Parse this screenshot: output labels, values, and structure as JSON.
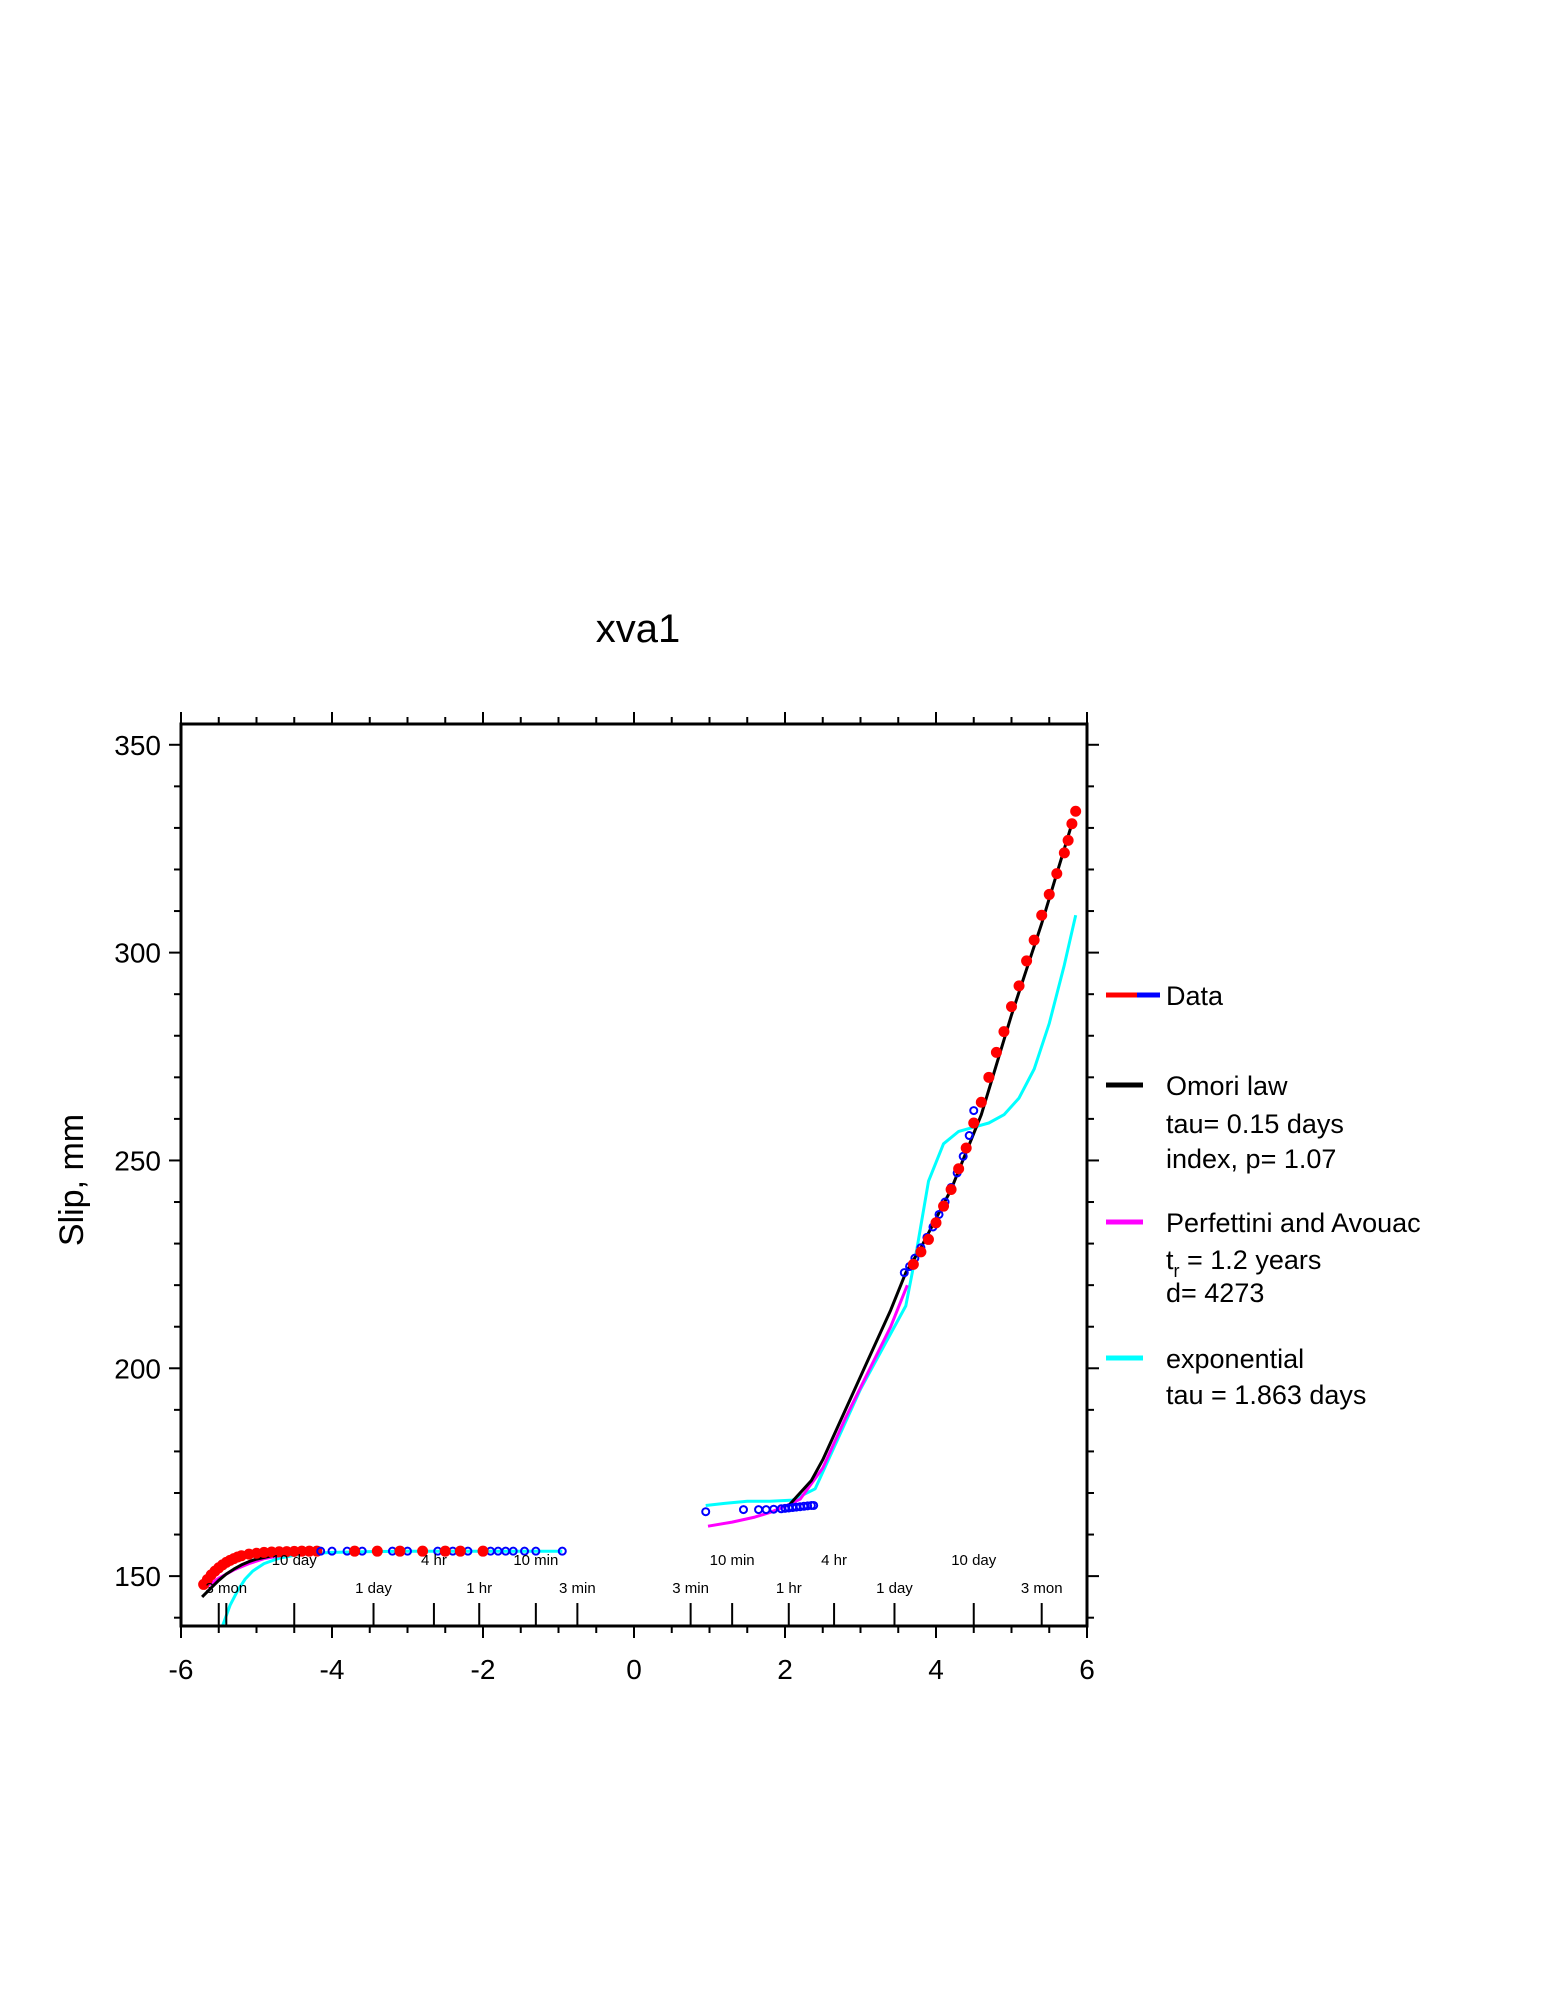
{
  "chart_data": {
    "type": "scatter",
    "title": "xva1",
    "xlabel": "",
    "ylabel": "Slip, mm",
    "xlim": [
      -6,
      6
    ],
    "ylim": [
      138,
      355
    ],
    "x_ticks": [
      "-6",
      "-4",
      "-2",
      "0",
      "2",
      "4",
      "6"
    ],
    "y_ticks": [
      "150",
      "200",
      "250",
      "300",
      "350"
    ],
    "time_axis_upper": [
      {
        "x": -4.5,
        "label": "10 day"
      },
      {
        "x": -2.65,
        "label": "4 hr"
      },
      {
        "x": -1.3,
        "label": "10 min"
      },
      {
        "x": 1.3,
        "label": "10 min"
      },
      {
        "x": 2.65,
        "label": "4 hr"
      },
      {
        "x": 4.5,
        "label": "10 day"
      }
    ],
    "time_axis_lower": [
      {
        "x": -5.4,
        "label": "3 mon"
      },
      {
        "x": -3.45,
        "label": "1 day"
      },
      {
        "x": -2.05,
        "label": "1 hr"
      },
      {
        "x": -0.75,
        "label": "3 min"
      },
      {
        "x": 0.75,
        "label": "3 min"
      },
      {
        "x": 2.05,
        "label": "1 hr"
      },
      {
        "x": 3.45,
        "label": "1 day"
      },
      {
        "x": 5.4,
        "label": "3 mon"
      }
    ],
    "series": [
      {
        "name": "Data",
        "kind": "markers",
        "colors": [
          "#ff0000",
          "#0000ff"
        ],
        "segments": [
          {
            "color": "#ff0000",
            "x": [
              -5.7,
              -5.65,
              -5.6,
              -5.55,
              -5.5,
              -5.45,
              -5.4,
              -5.35,
              -5.3,
              -5.25,
              -5.2,
              -5.1,
              -5.0,
              -4.9,
              -4.8,
              -4.7,
              -4.6,
              -4.5,
              -4.4,
              -4.3,
              -4.2
            ],
            "y": [
              148,
              149.2,
              150.3,
              151.2,
              152,
              152.7,
              153.3,
              153.8,
              154.2,
              154.6,
              154.9,
              155.3,
              155.5,
              155.7,
              155.8,
              155.85,
              155.9,
              155.95,
              156,
              156,
              156
            ]
          },
          {
            "color": "#0000ff",
            "x": [
              -4.15,
              -4.0,
              -3.8,
              -3.6,
              -3.4,
              -3.2,
              -3.0,
              -2.8,
              -2.6,
              -2.4,
              -2.2,
              -2.0,
              -1.9,
              -1.8,
              -1.7,
              -1.6,
              -1.45,
              -1.3,
              -0.95
            ],
            "y": [
              156,
              156,
              156,
              156,
              156,
              156,
              156,
              156,
              156,
              156,
              156,
              156,
              156,
              156,
              156,
              156,
              156,
              156,
              156
            ]
          },
          {
            "color": "#ff0000",
            "x": [
              -3.7,
              -3.4,
              -3.1,
              -2.8,
              -2.5,
              -2.3,
              -2.0
            ],
            "y": [
              156,
              156,
              156,
              156,
              156,
              156,
              156
            ]
          },
          {
            "color": "#0000ff",
            "x": [
              0.95,
              1.45,
              1.65,
              1.75,
              1.85,
              1.95,
              2.0,
              2.05,
              2.1,
              2.15,
              2.2,
              2.25,
              2.3,
              2.35,
              2.38
            ],
            "y": [
              165.5,
              166,
              166,
              166,
              166.1,
              166.2,
              166.3,
              166.4,
              166.5,
              166.6,
              166.7,
              166.8,
              166.9,
              167,
              167
            ]
          },
          {
            "color": "#0000ff",
            "x": [
              3.58,
              3.65,
              3.72,
              3.8,
              3.88,
              3.96,
              4.04,
              4.12,
              4.2,
              4.28,
              4.36,
              4.44,
              4.5
            ],
            "y": [
              223,
              224.5,
              226.5,
              229,
              231.5,
              234,
              237,
              240,
              243.5,
              247,
              251,
              256,
              262
            ]
          },
          {
            "color": "#ff0000",
            "x": [
              3.7,
              3.8,
              3.9,
              4.0,
              4.1,
              4.2,
              4.3,
              4.4,
              4.5,
              4.6,
              4.7,
              4.8,
              4.9,
              5.0,
              5.1,
              5.2,
              5.3,
              5.4,
              5.5,
              5.6,
              5.7,
              5.75,
              5.8,
              5.85
            ],
            "y": [
              225,
              228,
              231,
              235,
              239,
              243,
              248,
              253,
              259,
              264,
              270,
              276,
              281,
              287,
              292,
              298,
              303,
              309,
              314,
              319,
              324,
              327,
              331,
              334
            ]
          }
        ]
      },
      {
        "name": "Omori law",
        "kind": "line",
        "color": "#000000",
        "segments": [
          {
            "x": [
              -5.72,
              -5.6,
              -5.5,
              -5.4,
              -5.3,
              -5.2,
              -5.1,
              -5.0,
              -4.8,
              -4.6,
              -4.4,
              -4.2
            ],
            "y": [
              145,
              147.2,
              149,
              150.5,
              151.7,
              152.7,
              153.5,
              154.1,
              154.9,
              155.4,
              155.7,
              155.9
            ]
          },
          {
            "x": [
              2.05,
              2.15,
              2.25,
              2.35,
              2.5,
              2.8,
              3.1,
              3.4,
              3.6,
              3.8,
              4.0,
              4.2,
              4.4,
              4.6,
              4.8,
              5.0,
              5.2,
              5.4,
              5.6,
              5.8
            ],
            "y": [
              167,
              169,
              171,
              173,
              178,
              190,
              202,
              214,
              223,
              229,
              236,
              243,
              252,
              261,
              273,
              285,
              296,
              307,
              319,
              331
            ]
          }
        ]
      },
      {
        "name": "Perfettini and Avouac",
        "kind": "line",
        "color": "#ff00ff",
        "segments": [
          {
            "x": [
              -5.7,
              -5.5,
              -5.3,
              -5.1,
              -4.9,
              -4.6,
              -4.3
            ],
            "y": [
              147,
              149.5,
              151.5,
              153,
              154.2,
              155.2,
              155.7
            ]
          },
          {
            "x": [
              0.98,
              1.3,
              1.6,
              1.8,
              2.0,
              2.2,
              2.5,
              2.8,
              3.1,
              3.4,
              3.62
            ],
            "y": [
              162,
              163,
              164.2,
              165.3,
              166.8,
              168.5,
              176,
              188,
              199,
              210,
              220
            ]
          }
        ]
      },
      {
        "name": "exponential",
        "kind": "line",
        "color": "#00ffff",
        "segments": [
          {
            "x": [
              -5.45,
              -5.35,
              -5.25,
              -5.15,
              -5.05,
              -4.9,
              -4.7,
              -4.5,
              -4.3,
              -4.0,
              -3.5,
              -3.0,
              -2.5,
              -2.0,
              -1.5,
              -0.95
            ],
            "y": [
              138,
              143,
              146.5,
              149.3,
              151.2,
              153,
              154.3,
              155,
              155.4,
              155.7,
              155.9,
              156,
              156,
              156,
              156,
              156
            ]
          },
          {
            "x": [
              0.95,
              1.2,
              1.5,
              1.8,
              2.1,
              2.4,
              2.7,
              3.0,
              3.3,
              3.6,
              3.75,
              3.9,
              4.1,
              4.3,
              4.5,
              4.7,
              4.9,
              5.1,
              5.3,
              5.5,
              5.7,
              5.85
            ],
            "y": [
              167,
              167.5,
              168,
              168,
              168.3,
              171,
              183,
              195,
              205,
              215,
              229,
              245,
              254,
              257,
              258,
              259,
              261,
              265,
              272,
              283,
              297,
              309
            ]
          }
        ]
      }
    ],
    "legend": {
      "placement": "right",
      "entries": [
        {
          "label": "Data",
          "lines": []
        },
        {
          "label": "Omori law",
          "lines": [
            "tau= 0.15 days",
            "index, p= 1.07"
          ]
        },
        {
          "label": "Perfettini and Avouac",
          "lines": [
            "t",
            "r",
            " = 1.2 years",
            "d= 4273"
          ]
        },
        {
          "label": "exponential",
          "lines": [
            "tau = 1.863 days"
          ]
        }
      ]
    }
  }
}
